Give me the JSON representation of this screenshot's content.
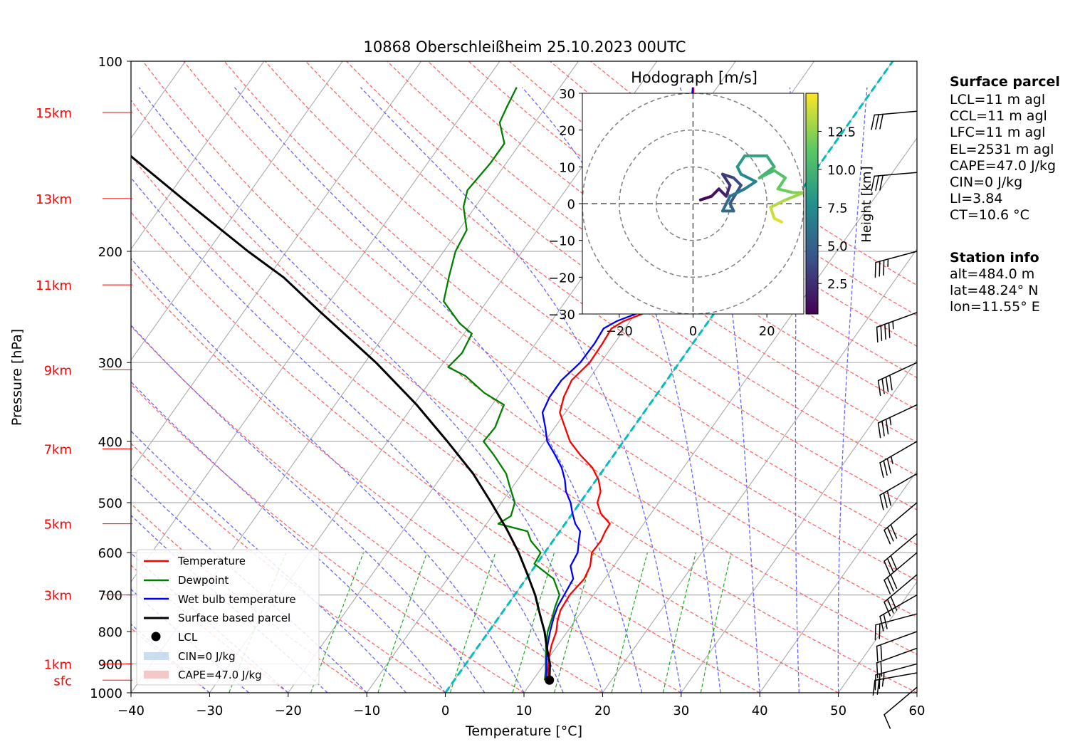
{
  "title": "10868 Oberschleißheim 25.10.2023 00UTC",
  "axes": {
    "xlabel": "Temperature [°C]",
    "ylabel": "Pressure [hPa]",
    "xticks": [
      "−40",
      "−30",
      "−20",
      "−10",
      "0",
      "10",
      "20",
      "30",
      "40",
      "50",
      "60"
    ],
    "yticks": [
      "100",
      "200",
      "300",
      "400",
      "500",
      "600",
      "700",
      "800",
      "900",
      "1000"
    ],
    "height_labels": [
      "15km",
      "13km",
      "11km",
      "9km",
      "7km",
      "5km",
      "3km",
      "1km",
      "sfc"
    ]
  },
  "legend": {
    "temperature": "Temperature",
    "dewpoint": "Dewpoint",
    "wetbulb": "Wet bulb temperature",
    "parcel": "Surface based parcel",
    "lcl": "LCL",
    "cin": "CIN=0 J/kg",
    "cape": "CAPE=47.0 J/kg"
  },
  "hodograph": {
    "title": "Hodograph [m/s]",
    "colorbar_label": "Height [km]",
    "colorbar_ticks": [
      "2.5",
      "5.0",
      "7.5",
      "10.0",
      "12.5"
    ],
    "xticks": [
      "−20",
      "0",
      "20"
    ],
    "yticks": [
      "30",
      "20",
      "10",
      "0",
      "−10",
      "−20",
      "−30"
    ]
  },
  "surface_parcel": {
    "heading": "Surface parcel",
    "lines": [
      "LCL=11 m agl",
      "CCL=11 m agl",
      "LFC=11 m agl",
      "EL=2531 m agl",
      "CAPE=47.0 J/kg",
      "CIN=0 J/kg",
      "LI=3.84",
      "CT=10.6 °C"
    ]
  },
  "station_info": {
    "heading": "Station info",
    "lines": [
      "alt=484.0 m",
      "lat=48.24° N",
      "lon=11.55° E"
    ]
  },
  "colors": {
    "temperature": "#ff0000",
    "dewpoint": "#008000",
    "wetbulb": "#0000ff",
    "parcel": "#000000",
    "zero_isotherm": "#00bfbf",
    "dry_adiabat": "#ff6666",
    "moist_adiabat": "#6666ff",
    "mixing_ratio": "#22aa22",
    "isotherm": "#aaaaaa"
  },
  "chart_data": {
    "type": "line",
    "skew": "skew-T log-p",
    "xlim": [
      -40,
      60
    ],
    "ylim": [
      1000,
      100
    ],
    "y_scale": "log",
    "legend_position": "lower-left",
    "series": [
      {
        "name": "Temperature",
        "points": [
          [
            12.0,
            955
          ],
          [
            11.0,
            920
          ],
          [
            10.0,
            880
          ],
          [
            9.2,
            840
          ],
          [
            8.6,
            800
          ],
          [
            7.8,
            770
          ],
          [
            7.2,
            740
          ],
          [
            7.0,
            700
          ],
          [
            7.4,
            660
          ],
          [
            7.0,
            630
          ],
          [
            6.0,
            600
          ],
          [
            6.1,
            575
          ],
          [
            5.8,
            555
          ],
          [
            5.7,
            540
          ],
          [
            3.6,
            520
          ],
          [
            2.2,
            500
          ],
          [
            1.6,
            480
          ],
          [
            0.3,
            460
          ],
          [
            -1.6,
            440
          ],
          [
            -4.3,
            420
          ],
          [
            -6.8,
            400
          ],
          [
            -8.7,
            380
          ],
          [
            -10.7,
            360
          ],
          [
            -11.6,
            340
          ],
          [
            -12.1,
            320
          ],
          [
            -11.4,
            300
          ],
          [
            -11.5,
            280
          ],
          [
            -11.7,
            265
          ],
          [
            -10.8,
            258
          ],
          [
            -8.8,
            250
          ],
          [
            -5.5,
            240
          ],
          [
            -4.8,
            230
          ],
          [
            -5.5,
            215
          ],
          [
            -6.5,
            205
          ],
          [
            -6.6,
            200
          ],
          [
            -10.0,
            185
          ],
          [
            -13.5,
            170
          ],
          [
            -15.0,
            160
          ],
          [
            -17.5,
            150
          ],
          [
            -18.5,
            140
          ],
          [
            -19.5,
            130
          ],
          [
            -21.0,
            120
          ],
          [
            -23.0,
            110
          ]
        ]
      },
      {
        "name": "Dewpoint",
        "points": [
          [
            11.5,
            955
          ],
          [
            10.7,
            920
          ],
          [
            9.6,
            880
          ],
          [
            8.5,
            840
          ],
          [
            7.5,
            800
          ],
          [
            6.8,
            760
          ],
          [
            6.2,
            730
          ],
          [
            5.7,
            700
          ],
          [
            3.5,
            660
          ],
          [
            -0.3,
            625
          ],
          [
            -0.5,
            600
          ],
          [
            -2.8,
            575
          ],
          [
            -4.1,
            555
          ],
          [
            -8.5,
            540
          ],
          [
            -7.6,
            525
          ],
          [
            -8.3,
            500
          ],
          [
            -10.5,
            470
          ],
          [
            -12.0,
            450
          ],
          [
            -15.3,
            420
          ],
          [
            -17.8,
            400
          ],
          [
            -17.6,
            380
          ],
          [
            -18.2,
            360
          ],
          [
            -18.5,
            350
          ],
          [
            -22.1,
            335
          ],
          [
            -26.0,
            315
          ],
          [
            -29.0,
            305
          ],
          [
            -28.5,
            290
          ],
          [
            -29.0,
            270
          ],
          [
            -31.5,
            260
          ],
          [
            -35.5,
            240
          ],
          [
            -37.0,
            220
          ],
          [
            -38.5,
            200
          ],
          [
            -39.0,
            185
          ],
          [
            -41.5,
            170
          ],
          [
            -42.5,
            160
          ],
          [
            -42.0,
            145
          ],
          [
            -42.0,
            135
          ],
          [
            -44.5,
            125
          ],
          [
            -45.0,
            118
          ],
          [
            -45.5,
            110
          ]
        ]
      },
      {
        "name": "Wet bulb temperature",
        "points": [
          [
            11.7,
            955
          ],
          [
            10.8,
            920
          ],
          [
            9.7,
            880
          ],
          [
            8.7,
            840
          ],
          [
            7.8,
            800
          ],
          [
            7.0,
            760
          ],
          [
            6.5,
            730
          ],
          [
            6.3,
            700
          ],
          [
            6.0,
            660
          ],
          [
            4.5,
            630
          ],
          [
            4.2,
            600
          ],
          [
            3.3,
            575
          ],
          [
            2.6,
            555
          ],
          [
            1.3,
            540
          ],
          [
            0.0,
            520
          ],
          [
            -1.2,
            500
          ],
          [
            -2.8,
            480
          ],
          [
            -4.0,
            460
          ],
          [
            -5.5,
            440
          ],
          [
            -7.5,
            420
          ],
          [
            -9.7,
            400
          ],
          [
            -11.2,
            380
          ],
          [
            -12.9,
            360
          ],
          [
            -13.4,
            340
          ],
          [
            -13.4,
            320
          ],
          [
            -12.6,
            300
          ],
          [
            -12.5,
            280
          ],
          [
            -12.7,
            265
          ],
          [
            -11.7,
            258
          ],
          [
            -9.6,
            250
          ],
          [
            -6.3,
            240
          ],
          [
            -5.5,
            230
          ],
          [
            -6.1,
            215
          ],
          [
            -7.0,
            205
          ],
          [
            -7.1,
            200
          ],
          [
            -10.4,
            185
          ],
          [
            -13.9,
            170
          ],
          [
            -15.4,
            160
          ],
          [
            -17.8,
            150
          ],
          [
            -18.8,
            140
          ],
          [
            -19.7,
            130
          ],
          [
            -21.2,
            120
          ],
          [
            -23.1,
            110
          ]
        ]
      },
      {
        "name": "Surface based parcel",
        "points": [
          [
            12.1,
            955
          ],
          [
            10.7,
            900
          ],
          [
            8.9,
            850
          ],
          [
            7.1,
            800
          ],
          [
            4.9,
            750
          ],
          [
            2.6,
            700
          ],
          [
            -0.2,
            650
          ],
          [
            -3.3,
            600
          ],
          [
            -7.0,
            550
          ],
          [
            -11.3,
            500
          ],
          [
            -16.2,
            450
          ],
          [
            -22.4,
            400
          ],
          [
            -29.6,
            350
          ],
          [
            -38.6,
            300
          ],
          [
            -50.1,
            250
          ],
          [
            -58.0,
            220
          ],
          [
            -64.9,
            200
          ],
          [
            -78.0,
            165
          ],
          [
            -94.0,
            130
          ],
          [
            -110.0,
            106
          ]
        ]
      }
    ],
    "lcl": {
      "temperature": 12.1,
      "pressure": 955
    },
    "wind_barbs": [
      {
        "pressure": 980,
        "speed_kt": 10,
        "direction": 230
      },
      {
        "pressure": 930,
        "speed_kt": 25,
        "direction": 260
      },
      {
        "pressure": 900,
        "speed_kt": 25,
        "direction": 255
      },
      {
        "pressure": 850,
        "speed_kt": 20,
        "direction": 250
      },
      {
        "pressure": 800,
        "speed_kt": 20,
        "direction": 250
      },
      {
        "pressure": 750,
        "speed_kt": 20,
        "direction": 255
      },
      {
        "pressure": 700,
        "speed_kt": 20,
        "direction": 240
      },
      {
        "pressure": 650,
        "speed_kt": 30,
        "direction": 230
      },
      {
        "pressure": 600,
        "speed_kt": 30,
        "direction": 230
      },
      {
        "pressure": 560,
        "speed_kt": 30,
        "direction": 230
      },
      {
        "pressure": 500,
        "speed_kt": 30,
        "direction": 230
      },
      {
        "pressure": 450,
        "speed_kt": 30,
        "direction": 240
      },
      {
        "pressure": 400,
        "speed_kt": 35,
        "direction": 240
      },
      {
        "pressure": 350,
        "speed_kt": 35,
        "direction": 245
      },
      {
        "pressure": 300,
        "speed_kt": 40,
        "direction": 245
      },
      {
        "pressure": 250,
        "speed_kt": 45,
        "direction": 250
      },
      {
        "pressure": 200,
        "speed_kt": 35,
        "direction": 255
      },
      {
        "pressure": 150,
        "speed_kt": 30,
        "direction": 265
      },
      {
        "pressure": 120,
        "speed_kt": 30,
        "direction": 265
      }
    ],
    "hodograph_data": {
      "units": "m/s",
      "xlim": [
        -30,
        30
      ],
      "ylim": [
        -30,
        30
      ],
      "rings": [
        10,
        20,
        30
      ],
      "colorbar_range_km": [
        0.5,
        15
      ],
      "points": [
        [
          2,
          1,
          0.5
        ],
        [
          5,
          2,
          1.0
        ],
        [
          7,
          4,
          1.5
        ],
        [
          9,
          2,
          2.0
        ],
        [
          10,
          5,
          2.5
        ],
        [
          8,
          8,
          3.0
        ],
        [
          11,
          7,
          3.5
        ],
        [
          13,
          5,
          4.0
        ],
        [
          10,
          0,
          4.5
        ],
        [
          11,
          -2,
          5.0
        ],
        [
          8,
          -2,
          5.5
        ],
        [
          10,
          2,
          6.0
        ],
        [
          14,
          4,
          6.5
        ],
        [
          17,
          6,
          7.0
        ],
        [
          13,
          8,
          7.5
        ],
        [
          12,
          10,
          8.0
        ],
        [
          14,
          13,
          8.5
        ],
        [
          20,
          13,
          9.0
        ],
        [
          22,
          10,
          9.5
        ],
        [
          18,
          7,
          10.0
        ],
        [
          22,
          9,
          10.5
        ],
        [
          25,
          7,
          11.0
        ],
        [
          23,
          4,
          11.5
        ],
        [
          27,
          3,
          12.0
        ],
        [
          30,
          3,
          12.5
        ],
        [
          25,
          1,
          13.0
        ],
        [
          21,
          -1,
          13.5
        ],
        [
          22,
          -4,
          14.0
        ],
        [
          24,
          -5,
          14.5
        ]
      ]
    }
  }
}
